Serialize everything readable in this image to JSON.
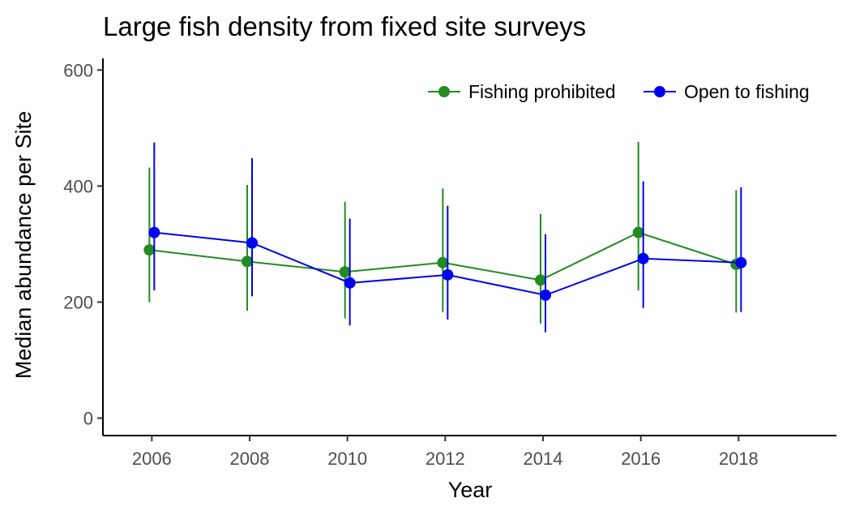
{
  "chart_data": {
    "type": "line",
    "title": "Large fish density from fixed site surveys",
    "xlabel": "Year",
    "ylabel": "Median abundance per Site",
    "xlim": [
      2005,
      2020
    ],
    "ylim": [
      -30,
      620
    ],
    "x_ticks": [
      2006,
      2008,
      2010,
      2012,
      2014,
      2016,
      2018
    ],
    "y_ticks": [
      0,
      200,
      400,
      600
    ],
    "grid": false,
    "legend_position": "top-right",
    "series": [
      {
        "name": "Fishing prohibited",
        "color": "#228B22",
        "x": [
          2006,
          2008,
          2010,
          2012,
          2014,
          2016,
          2018
        ],
        "values": [
          290,
          270,
          252,
          268,
          238,
          320,
          265
        ],
        "lower": [
          200,
          185,
          172,
          183,
          163,
          220,
          182
        ],
        "upper": [
          432,
          402,
          373,
          396,
          352,
          476,
          393
        ]
      },
      {
        "name": "Open to fishing",
        "color": "#0000EE",
        "x": [
          2006,
          2008,
          2010,
          2012,
          2014,
          2016,
          2018
        ],
        "values": [
          320,
          302,
          233,
          247,
          212,
          275,
          268
        ],
        "lower": [
          220,
          210,
          160,
          170,
          148,
          190,
          183
        ],
        "upper": [
          475,
          448,
          344,
          366,
          317,
          408,
          398
        ]
      }
    ]
  }
}
